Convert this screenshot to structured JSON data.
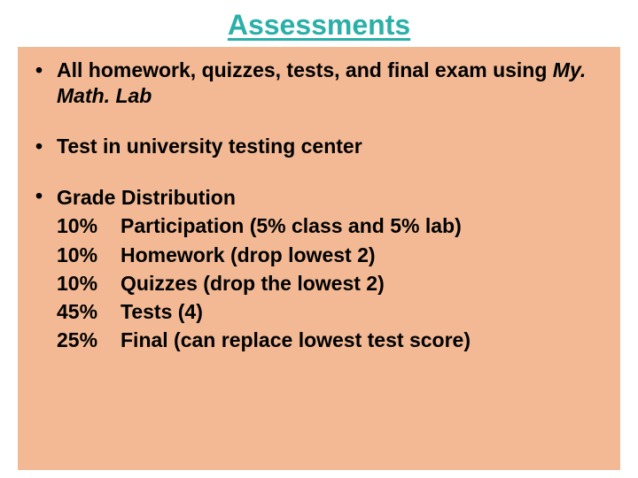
{
  "title": {
    "text": "Assessments",
    "color": "#2bb0a8",
    "fontsize": 32
  },
  "background_color": "#ffffff",
  "content_box": {
    "background_color": "#f2b994",
    "text_color": "#000000",
    "fontsize": 23,
    "font_weight": "bold"
  },
  "bullets": [
    {
      "prefix": "All homework, quizzes, tests, and final exam using ",
      "italic": "My. Math. Lab",
      "suffix": ""
    },
    {
      "prefix": "Test in university testing center",
      "italic": "",
      "suffix": ""
    }
  ],
  "grade_section": {
    "heading": "Grade Distribution",
    "rows": [
      {
        "pct": "10%",
        "desc": "Participation (5% class and 5% lab)"
      },
      {
        "pct": "10%",
        "desc": "Homework (drop lowest 2)"
      },
      {
        "pct": "10%",
        "desc": "Quizzes (drop the lowest 2)"
      },
      {
        "pct": "45%",
        "desc": "Tests (4)"
      },
      {
        "pct": "25%",
        "desc": "Final (can replace lowest test score)"
      }
    ]
  }
}
